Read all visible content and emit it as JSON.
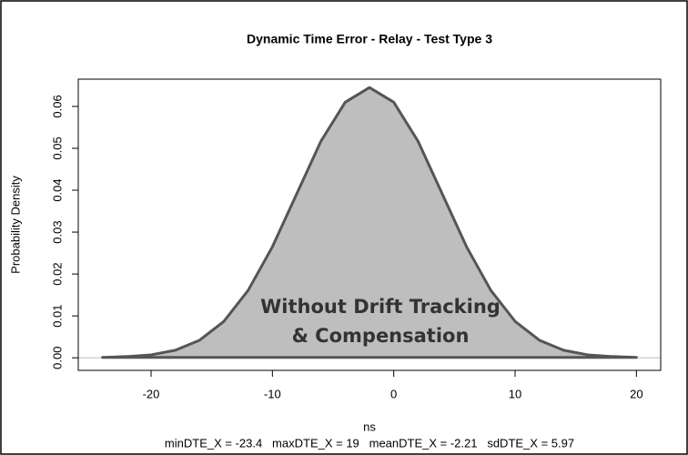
{
  "chart_data": {
    "type": "area",
    "title": "Dynamic Time Error - Relay - Test Type 3",
    "x_label": "ns",
    "y_label": "Probability Density",
    "subtitle": "minDTE_X = -23.4   maxDTE_X = 19   meanDTE_X = -2.21   sdDTE_X = 5.97",
    "annotation": [
      "Without Drift Tracking",
      "& Compensation"
    ],
    "x": [
      -24,
      -22,
      -20,
      -18,
      -16,
      -14,
      -12,
      -10,
      -8,
      -6,
      -4,
      -2,
      0,
      2,
      4,
      6,
      8,
      10,
      12,
      14,
      16,
      18,
      20
    ],
    "values": [
      0.0001,
      0.0003,
      0.0007,
      0.0018,
      0.0042,
      0.0087,
      0.0161,
      0.0265,
      0.0391,
      0.0517,
      0.061,
      0.0645,
      0.061,
      0.0517,
      0.0391,
      0.0265,
      0.0161,
      0.0087,
      0.0042,
      0.0018,
      0.0007,
      0.0003,
      0.0001
    ],
    "color": "#bebebe",
    "line_color": "#555555",
    "xlim": [
      -26,
      22
    ],
    "ylim": [
      -0.003,
      0.0665
    ],
    "xticks": [
      -20,
      -10,
      0,
      10,
      20
    ],
    "yticks": [
      {
        "value": 0,
        "label": "0.00"
      },
      0.01,
      0.02,
      0.03,
      0.04,
      0.05,
      0.06
    ]
  }
}
